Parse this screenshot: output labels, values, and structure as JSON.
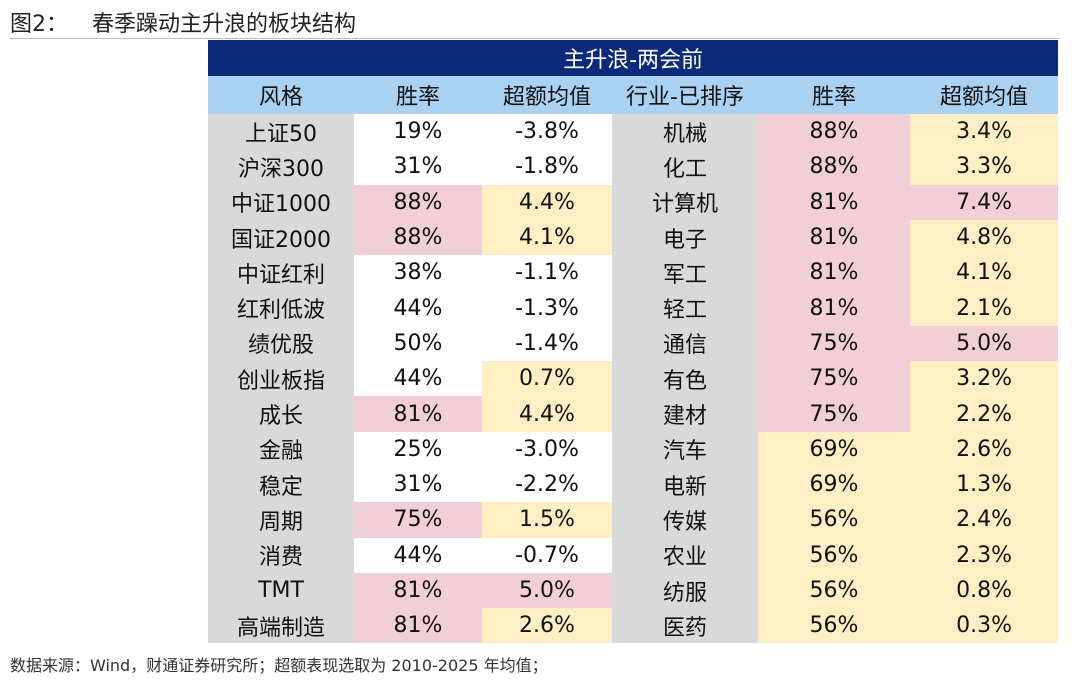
{
  "title": {
    "label": "图2：",
    "text": "春季躁动主升浪的板块结构"
  },
  "table": {
    "group_header": "主升浪-两会前",
    "headers": [
      "风格",
      "胜率",
      "超额均值",
      "行业-已排序",
      "胜率",
      "超额均值"
    ],
    "colors": {
      "red": "#f2cfd6",
      "yellow": "#fdefc3",
      "gray": "#d9d9d9",
      "header_blue": "#a9d1f2",
      "navy": "#0d2a7a"
    },
    "rows": [
      {
        "style": "上证50",
        "win1": "19%",
        "ex1": "-3.8%",
        "industry": "机械",
        "win2": "88%",
        "ex2": "3.4%",
        "c1": "w",
        "c2": "w",
        "c3": "r",
        "c4": "y"
      },
      {
        "style": "沪深300",
        "win1": "31%",
        "ex1": "-1.8%",
        "industry": "化工",
        "win2": "88%",
        "ex2": "3.3%",
        "c1": "w",
        "c2": "w",
        "c3": "r",
        "c4": "y"
      },
      {
        "style": "中证1000",
        "win1": "88%",
        "ex1": "4.4%",
        "industry": "计算机",
        "win2": "81%",
        "ex2": "7.4%",
        "c1": "r",
        "c2": "y",
        "c3": "r",
        "c4": "r"
      },
      {
        "style": "国证2000",
        "win1": "88%",
        "ex1": "4.1%",
        "industry": "电子",
        "win2": "81%",
        "ex2": "4.8%",
        "c1": "r",
        "c2": "y",
        "c3": "r",
        "c4": "y"
      },
      {
        "style": "中证红利",
        "win1": "38%",
        "ex1": "-1.1%",
        "industry": "军工",
        "win2": "81%",
        "ex2": "4.1%",
        "c1": "w",
        "c2": "w",
        "c3": "r",
        "c4": "y"
      },
      {
        "style": "红利低波",
        "win1": "44%",
        "ex1": "-1.3%",
        "industry": "轻工",
        "win2": "81%",
        "ex2": "2.1%",
        "c1": "w",
        "c2": "w",
        "c3": "r",
        "c4": "y"
      },
      {
        "style": "绩优股",
        "win1": "50%",
        "ex1": "-1.4%",
        "industry": "通信",
        "win2": "75%",
        "ex2": "5.0%",
        "c1": "w",
        "c2": "w",
        "c3": "r",
        "c4": "r"
      },
      {
        "style": "创业板指",
        "win1": "44%",
        "ex1": "0.7%",
        "industry": "有色",
        "win2": "75%",
        "ex2": "3.2%",
        "c1": "w",
        "c2": "y",
        "c3": "r",
        "c4": "y"
      },
      {
        "style": "成长",
        "win1": "81%",
        "ex1": "4.4%",
        "industry": "建材",
        "win2": "75%",
        "ex2": "2.2%",
        "c1": "r",
        "c2": "y",
        "c3": "r",
        "c4": "y"
      },
      {
        "style": "金融",
        "win1": "25%",
        "ex1": "-3.0%",
        "industry": "汽车",
        "win2": "69%",
        "ex2": "2.6%",
        "c1": "w",
        "c2": "w",
        "c3": "y",
        "c4": "y"
      },
      {
        "style": "稳定",
        "win1": "31%",
        "ex1": "-2.2%",
        "industry": "电新",
        "win2": "69%",
        "ex2": "1.3%",
        "c1": "w",
        "c2": "w",
        "c3": "y",
        "c4": "y"
      },
      {
        "style": "周期",
        "win1": "75%",
        "ex1": "1.5%",
        "industry": "传媒",
        "win2": "56%",
        "ex2": "2.4%",
        "c1": "r",
        "c2": "y",
        "c3": "y",
        "c4": "y"
      },
      {
        "style": "消费",
        "win1": "44%",
        "ex1": "-0.7%",
        "industry": "农业",
        "win2": "56%",
        "ex2": "2.3%",
        "c1": "w",
        "c2": "w",
        "c3": "y",
        "c4": "y"
      },
      {
        "style": "TMT",
        "win1": "81%",
        "ex1": "5.0%",
        "industry": "纺服",
        "win2": "56%",
        "ex2": "0.8%",
        "c1": "r",
        "c2": "r",
        "c3": "y",
        "c4": "y"
      },
      {
        "style": "高端制造",
        "win1": "81%",
        "ex1": "2.6%",
        "industry": "医药",
        "win2": "56%",
        "ex2": "0.3%",
        "c1": "r",
        "c2": "y",
        "c3": "y",
        "c4": "y"
      }
    ]
  },
  "source": "数据来源：Wind，财通证券研究所；超额表现选取为 2010-2025 年均值；"
}
